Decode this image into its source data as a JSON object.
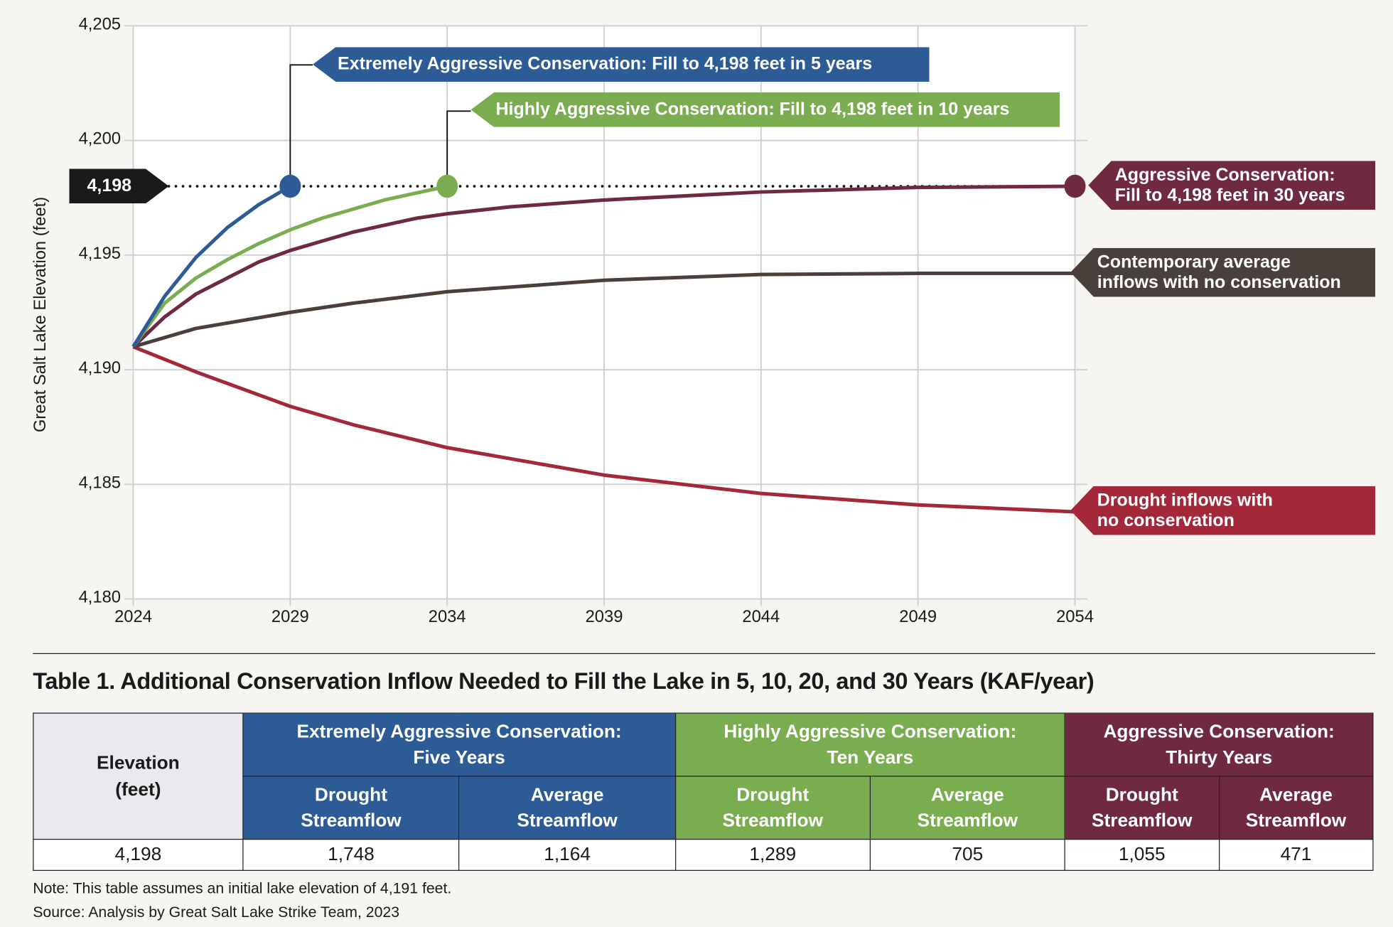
{
  "chart_data": {
    "type": "line",
    "ylabel": "Great Salt Lake Elevation (feet)",
    "xlabel": "",
    "xlim": [
      2024,
      2054
    ],
    "ylim": [
      4180,
      4205
    ],
    "x_ticks": [
      "2024",
      "2029",
      "2034",
      "2039",
      "2044",
      "2049",
      "2054"
    ],
    "y_ticks": [
      "4,180",
      "4,185",
      "4,190",
      "4,195",
      "4,200",
      "4,205"
    ],
    "grid": true,
    "reference_line": {
      "value": 4198,
      "label": "4,198",
      "style": "dotted"
    },
    "series": [
      {
        "name": "Extremely Aggressive Conservation: Fill to 4,198 feet in 5 years",
        "color": "#2d5b96",
        "points": [
          [
            2024,
            4191
          ],
          [
            2025,
            4193.2
          ],
          [
            2026,
            4194.9
          ],
          [
            2027,
            4196.2
          ],
          [
            2028,
            4197.2
          ],
          [
            2029,
            4198
          ]
        ],
        "end_marker": true
      },
      {
        "name": "Highly Aggressive Conservation: Fill to 4,198 feet in 10 years",
        "color": "#7aad4f",
        "points": [
          [
            2024,
            4191
          ],
          [
            2025,
            4192.9
          ],
          [
            2026,
            4194.0
          ],
          [
            2027,
            4194.8
          ],
          [
            2028,
            4195.5
          ],
          [
            2029,
            4196.1
          ],
          [
            2030,
            4196.6
          ],
          [
            2031,
            4197.0
          ],
          [
            2032,
            4197.4
          ],
          [
            2033,
            4197.7
          ],
          [
            2034,
            4198
          ]
        ],
        "end_marker": true
      },
      {
        "name": "Aggressive Conservation: Fill to 4,198 feet in 30 years",
        "color": "#6f2a40",
        "points": [
          [
            2024,
            4191
          ],
          [
            2025,
            4192.3
          ],
          [
            2026,
            4193.3
          ],
          [
            2027,
            4194.0
          ],
          [
            2028,
            4194.7
          ],
          [
            2029,
            4195.2
          ],
          [
            2030,
            4195.6
          ],
          [
            2031,
            4196.0
          ],
          [
            2032,
            4196.3
          ],
          [
            2033,
            4196.6
          ],
          [
            2034,
            4196.8
          ],
          [
            2036,
            4197.1
          ],
          [
            2039,
            4197.4
          ],
          [
            2044,
            4197.75
          ],
          [
            2049,
            4197.95
          ],
          [
            2054,
            4198
          ]
        ],
        "end_marker": true
      },
      {
        "name": "Contemporary average inflows with no conservation",
        "color": "#4a403b",
        "points": [
          [
            2024,
            4191
          ],
          [
            2026,
            4191.8
          ],
          [
            2029,
            4192.5
          ],
          [
            2031,
            4192.9
          ],
          [
            2034,
            4193.4
          ],
          [
            2039,
            4193.9
          ],
          [
            2044,
            4194.15
          ],
          [
            2049,
            4194.2
          ],
          [
            2054,
            4194.2
          ]
        ],
        "end_marker": false
      },
      {
        "name": "Drought inflows with no conservation",
        "color": "#a3293a",
        "points": [
          [
            2024,
            4191
          ],
          [
            2026,
            4189.9
          ],
          [
            2029,
            4188.4
          ],
          [
            2031,
            4187.6
          ],
          [
            2034,
            4186.6
          ],
          [
            2039,
            4185.4
          ],
          [
            2044,
            4184.6
          ],
          [
            2049,
            4184.1
          ],
          [
            2054,
            4183.8
          ]
        ],
        "end_marker": false
      }
    ],
    "callouts": {
      "extreme": "Extremely Aggressive Conservation: Fill to 4,198 feet in 5 years",
      "high": "Highly Aggressive Conservation: Fill to 4,198 feet in 10 years",
      "aggr1": "Aggressive Conservation:",
      "aggr2": "Fill to 4,198 feet in 30 years",
      "avg1": "Contemporary average",
      "avg2": "inflows with no conservation",
      "drought1": "Drought inflows with",
      "drought2": "no conservation"
    }
  },
  "table": {
    "title": "Table 1. Additional Conservation Inflow Needed to Fill the Lake in 5, 10, 20, and 30 Years (KAF/year)",
    "row_header": [
      "Elevation",
      "(feet)"
    ],
    "groups": [
      {
        "l1": "Extremely Aggressive Conservation:",
        "l2": "Five Years",
        "color": "#2d5b96"
      },
      {
        "l1": "Highly Aggressive Conservation:",
        "l2": "Ten Years",
        "color": "#7aad4f"
      },
      {
        "l1": "Aggressive Conservation:",
        "l2": "Thirty Years",
        "color": "#6f2a40"
      }
    ],
    "subheaders": [
      [
        "Drought",
        "Streamflow"
      ],
      [
        "Average",
        "Streamflow"
      ],
      [
        "Drought",
        "Streamflow"
      ],
      [
        "Average",
        "Streamflow"
      ],
      [
        "Drought",
        "Streamflow"
      ],
      [
        "Average",
        "Streamflow"
      ]
    ],
    "row": [
      "4,198",
      "1,748",
      "1,164",
      "1,289",
      "705",
      "1,055",
      "471"
    ]
  },
  "note": "Note: This table assumes an initial lake elevation of 4,191 feet.",
  "source": "Source: Analysis by Great Salt Lake Strike Team, 2023"
}
